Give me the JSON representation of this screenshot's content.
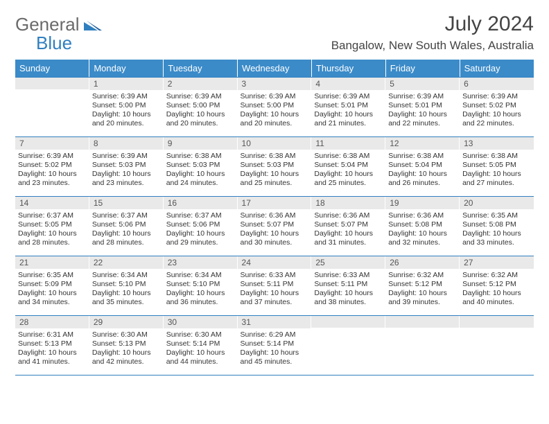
{
  "logo": {
    "word1": "General",
    "word2": "Blue"
  },
  "title": "July 2024",
  "location": "Bangalow, New South Wales, Australia",
  "colors": {
    "header_bg": "#3b8bc9",
    "header_text": "#ffffff",
    "daynum_bg": "#e9e9e9",
    "rule": "#2f7fbf",
    "logo_gray": "#6a6a6a",
    "logo_blue": "#2f7fbf"
  },
  "day_headers": [
    "Sunday",
    "Monday",
    "Tuesday",
    "Wednesday",
    "Thursday",
    "Friday",
    "Saturday"
  ],
  "weeks": [
    [
      {
        "n": "",
        "sr": "",
        "ss": "",
        "dl": ""
      },
      {
        "n": "1",
        "sr": "6:39 AM",
        "ss": "5:00 PM",
        "dl": "10 hours and 20 minutes."
      },
      {
        "n": "2",
        "sr": "6:39 AM",
        "ss": "5:00 PM",
        "dl": "10 hours and 20 minutes."
      },
      {
        "n": "3",
        "sr": "6:39 AM",
        "ss": "5:00 PM",
        "dl": "10 hours and 20 minutes."
      },
      {
        "n": "4",
        "sr": "6:39 AM",
        "ss": "5:01 PM",
        "dl": "10 hours and 21 minutes."
      },
      {
        "n": "5",
        "sr": "6:39 AM",
        "ss": "5:01 PM",
        "dl": "10 hours and 22 minutes."
      },
      {
        "n": "6",
        "sr": "6:39 AM",
        "ss": "5:02 PM",
        "dl": "10 hours and 22 minutes."
      }
    ],
    [
      {
        "n": "7",
        "sr": "6:39 AM",
        "ss": "5:02 PM",
        "dl": "10 hours and 23 minutes."
      },
      {
        "n": "8",
        "sr": "6:39 AM",
        "ss": "5:03 PM",
        "dl": "10 hours and 23 minutes."
      },
      {
        "n": "9",
        "sr": "6:38 AM",
        "ss": "5:03 PM",
        "dl": "10 hours and 24 minutes."
      },
      {
        "n": "10",
        "sr": "6:38 AM",
        "ss": "5:03 PM",
        "dl": "10 hours and 25 minutes."
      },
      {
        "n": "11",
        "sr": "6:38 AM",
        "ss": "5:04 PM",
        "dl": "10 hours and 25 minutes."
      },
      {
        "n": "12",
        "sr": "6:38 AM",
        "ss": "5:04 PM",
        "dl": "10 hours and 26 minutes."
      },
      {
        "n": "13",
        "sr": "6:38 AM",
        "ss": "5:05 PM",
        "dl": "10 hours and 27 minutes."
      }
    ],
    [
      {
        "n": "14",
        "sr": "6:37 AM",
        "ss": "5:05 PM",
        "dl": "10 hours and 28 minutes."
      },
      {
        "n": "15",
        "sr": "6:37 AM",
        "ss": "5:06 PM",
        "dl": "10 hours and 28 minutes."
      },
      {
        "n": "16",
        "sr": "6:37 AM",
        "ss": "5:06 PM",
        "dl": "10 hours and 29 minutes."
      },
      {
        "n": "17",
        "sr": "6:36 AM",
        "ss": "5:07 PM",
        "dl": "10 hours and 30 minutes."
      },
      {
        "n": "18",
        "sr": "6:36 AM",
        "ss": "5:07 PM",
        "dl": "10 hours and 31 minutes."
      },
      {
        "n": "19",
        "sr": "6:36 AM",
        "ss": "5:08 PM",
        "dl": "10 hours and 32 minutes."
      },
      {
        "n": "20",
        "sr": "6:35 AM",
        "ss": "5:08 PM",
        "dl": "10 hours and 33 minutes."
      }
    ],
    [
      {
        "n": "21",
        "sr": "6:35 AM",
        "ss": "5:09 PM",
        "dl": "10 hours and 34 minutes."
      },
      {
        "n": "22",
        "sr": "6:34 AM",
        "ss": "5:10 PM",
        "dl": "10 hours and 35 minutes."
      },
      {
        "n": "23",
        "sr": "6:34 AM",
        "ss": "5:10 PM",
        "dl": "10 hours and 36 minutes."
      },
      {
        "n": "24",
        "sr": "6:33 AM",
        "ss": "5:11 PM",
        "dl": "10 hours and 37 minutes."
      },
      {
        "n": "25",
        "sr": "6:33 AM",
        "ss": "5:11 PM",
        "dl": "10 hours and 38 minutes."
      },
      {
        "n": "26",
        "sr": "6:32 AM",
        "ss": "5:12 PM",
        "dl": "10 hours and 39 minutes."
      },
      {
        "n": "27",
        "sr": "6:32 AM",
        "ss": "5:12 PM",
        "dl": "10 hours and 40 minutes."
      }
    ],
    [
      {
        "n": "28",
        "sr": "6:31 AM",
        "ss": "5:13 PM",
        "dl": "10 hours and 41 minutes."
      },
      {
        "n": "29",
        "sr": "6:30 AM",
        "ss": "5:13 PM",
        "dl": "10 hours and 42 minutes."
      },
      {
        "n": "30",
        "sr": "6:30 AM",
        "ss": "5:14 PM",
        "dl": "10 hours and 44 minutes."
      },
      {
        "n": "31",
        "sr": "6:29 AM",
        "ss": "5:14 PM",
        "dl": "10 hours and 45 minutes."
      },
      {
        "n": "",
        "sr": "",
        "ss": "",
        "dl": ""
      },
      {
        "n": "",
        "sr": "",
        "ss": "",
        "dl": ""
      },
      {
        "n": "",
        "sr": "",
        "ss": "",
        "dl": ""
      }
    ]
  ],
  "labels": {
    "sunrise": "Sunrise:",
    "sunset": "Sunset:",
    "daylight": "Daylight:"
  }
}
